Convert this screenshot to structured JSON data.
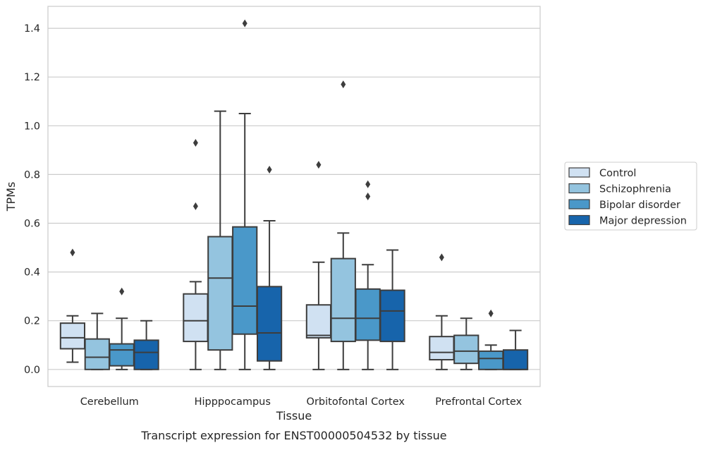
{
  "chart_data": {
    "type": "box",
    "title": "",
    "xlabel": "Tissue",
    "ylabel": "TPMs",
    "caption": "Transcript expression for ENST00000504532 by tissue",
    "categories": [
      "Cerebellum",
      "Hipppocampus",
      "Orbitofontal Cortex",
      "Prefrontal Cortex"
    ],
    "ylim": [
      -0.07,
      1.49
    ],
    "yticks": [
      0.0,
      0.2,
      0.4,
      0.6,
      0.8,
      1.0,
      1.2,
      1.4
    ],
    "ytick_labels": [
      "0.0",
      "0.2",
      "0.4",
      "0.6",
      "0.8",
      "1.0",
      "1.2",
      "1.4"
    ],
    "grid": "horizontal",
    "legend_position": "right",
    "series": [
      {
        "name": "Control",
        "color": "#d0e1f2",
        "boxes": [
          {
            "whislo": 0.03,
            "q1": 0.085,
            "med": 0.13,
            "q3": 0.19,
            "whishi": 0.22,
            "fliers": [
              0.48
            ]
          },
          {
            "whislo": 0.0,
            "q1": 0.115,
            "med": 0.2,
            "q3": 0.31,
            "whishi": 0.36,
            "fliers": [
              0.67,
              0.93
            ]
          },
          {
            "whislo": 0.0,
            "q1": 0.13,
            "med": 0.14,
            "q3": 0.265,
            "whishi": 0.44,
            "fliers": [
              0.84
            ]
          },
          {
            "whislo": 0.0,
            "q1": 0.04,
            "med": 0.07,
            "q3": 0.135,
            "whishi": 0.22,
            "fliers": [
              0.46
            ]
          }
        ]
      },
      {
        "name": "Schizophrenia",
        "color": "#94c4df",
        "boxes": [
          {
            "whislo": 0.0,
            "q1": 0.0,
            "med": 0.05,
            "q3": 0.125,
            "whishi": 0.23,
            "fliers": []
          },
          {
            "whislo": 0.0,
            "q1": 0.08,
            "med": 0.375,
            "q3": 0.545,
            "whishi": 1.06,
            "fliers": []
          },
          {
            "whislo": 0.0,
            "q1": 0.115,
            "med": 0.21,
            "q3": 0.455,
            "whishi": 0.56,
            "fliers": [
              1.17
            ]
          },
          {
            "whislo": 0.0,
            "q1": 0.025,
            "med": 0.075,
            "q3": 0.14,
            "whishi": 0.21,
            "fliers": []
          }
        ]
      },
      {
        "name": "Bipolar disorder",
        "color": "#4a98c9",
        "boxes": [
          {
            "whislo": 0.0,
            "q1": 0.015,
            "med": 0.08,
            "q3": 0.105,
            "whishi": 0.21,
            "fliers": [
              0.32
            ]
          },
          {
            "whislo": 0.0,
            "q1": 0.145,
            "med": 0.26,
            "q3": 0.585,
            "whishi": 1.05,
            "fliers": [
              1.42
            ]
          },
          {
            "whislo": 0.0,
            "q1": 0.12,
            "med": 0.21,
            "q3": 0.33,
            "whishi": 0.43,
            "fliers": [
              0.71,
              0.76
            ]
          },
          {
            "whislo": 0.0,
            "q1": 0.0,
            "med": 0.045,
            "q3": 0.075,
            "whishi": 0.1,
            "fliers": [
              0.23
            ]
          }
        ]
      },
      {
        "name": "Major depression",
        "color": "#1764ab",
        "boxes": [
          {
            "whislo": 0.0,
            "q1": 0.0,
            "med": 0.07,
            "q3": 0.12,
            "whishi": 0.2,
            "fliers": []
          },
          {
            "whislo": 0.0,
            "q1": 0.035,
            "med": 0.15,
            "q3": 0.34,
            "whishi": 0.61,
            "fliers": [
              0.82
            ]
          },
          {
            "whislo": 0.0,
            "q1": 0.115,
            "med": 0.24,
            "q3": 0.325,
            "whishi": 0.49,
            "fliers": []
          },
          {
            "whislo": 0.0,
            "q1": 0.0,
            "med": 0.0,
            "q3": 0.08,
            "whishi": 0.16,
            "fliers": []
          }
        ]
      }
    ]
  }
}
